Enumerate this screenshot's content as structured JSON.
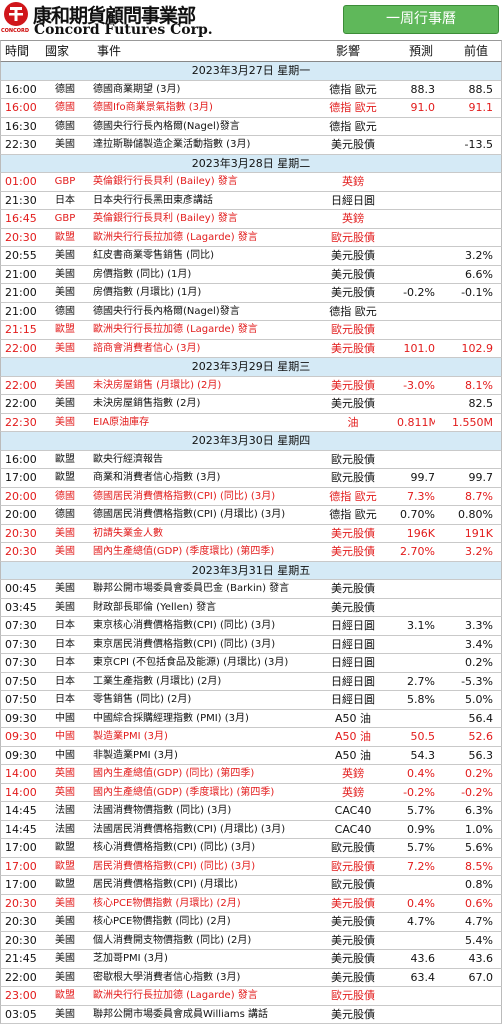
{
  "header": {
    "logo_text": "CONCORD",
    "company": "康和期貨顧問事業部",
    "company_en": "Concord Futures Corp.",
    "button": "一周行事曆"
  },
  "columns": [
    "時間",
    "國家",
    "事件",
    "影響",
    "預測",
    "前值"
  ],
  "days": [
    {
      "date": "2023年3月27日  星期一",
      "events": [
        {
          "time": "16:00",
          "country": "德國",
          "event": "德國商業期望 (3月)",
          "impact": "德指 歐元",
          "forecast": "88.3",
          "previous": "88.5"
        },
        {
          "time": "16:00",
          "country": "德國",
          "event": "德國Ifo商業景氣指數 (3月)",
          "impact": "德指 歐元",
          "forecast": "91.0",
          "previous": "91.1",
          "red": true
        },
        {
          "time": "16:30",
          "country": "德國",
          "event": "德國央行行長內格爾(Nagel)發言",
          "impact": "德指 歐元"
        },
        {
          "time": "22:30",
          "country": "美國",
          "event": "達拉斯聯儲製造企業活動指數 (3月)",
          "impact": "美元股債",
          "previous": "-13.5"
        }
      ]
    },
    {
      "date": "2023年3月28日  星期二",
      "events": [
        {
          "time": "01:00",
          "country": "GBP",
          "event": "英倫銀行行長貝利 (Bailey) 發言",
          "impact": "英鎊",
          "red": true
        },
        {
          "time": "21:30",
          "country": "日本",
          "event": "日本央行行長黑田東彥講話",
          "impact": "日經日圓"
        },
        {
          "time": "16:45",
          "country": "GBP",
          "event": "英倫銀行行長貝利 (Bailey) 發言",
          "impact": "英鎊",
          "red": true
        },
        {
          "time": "20:30",
          "country": "歐盟",
          "event": "歐洲央行行長拉加德 (Lagarde) 發言",
          "impact": "歐元股債",
          "red": true
        },
        {
          "time": "20:55",
          "country": "美國",
          "event": "紅皮書商業零售銷售 (同比)",
          "impact": "美元股債",
          "previous": "3.2%"
        },
        {
          "time": "21:00",
          "country": "美國",
          "event": "房價指數 (同比) (1月)",
          "impact": "美元股債",
          "previous": "6.6%"
        },
        {
          "time": "21:00",
          "country": "美國",
          "event": "房價指數 (月環比) (1月)",
          "impact": "美元股債",
          "forecast": "-0.2%",
          "previous": "-0.1%"
        },
        {
          "time": "21:00",
          "country": "德國",
          "event": "德國央行行長內格爾(Nagel)發言",
          "impact": "德指 歐元"
        },
        {
          "time": "21:15",
          "country": "歐盟",
          "event": "歐洲央行行長拉加德 (Lagarde) 發言",
          "impact": "歐元股債",
          "red": true
        },
        {
          "time": "22:00",
          "country": "美國",
          "event": "諮商會消費者信心 (3月)",
          "impact": "美元股債",
          "forecast": "101.0",
          "previous": "102.9",
          "red": true
        }
      ]
    },
    {
      "date": "2023年3月29日  星期三",
      "events": [
        {
          "time": "22:00",
          "country": "美國",
          "event": "未決房屋銷售 (月環比) (2月)",
          "impact": "美元股債",
          "forecast": "-3.0%",
          "previous": "8.1%",
          "red": true
        },
        {
          "time": "22:00",
          "country": "美國",
          "event": "未決房屋銷售指數 (2月)",
          "impact": "美元股債",
          "previous": "82.5"
        },
        {
          "time": "22:30",
          "country": "美國",
          "event": "EIA原油庫存",
          "impact": "油",
          "forecast": "0.811M",
          "previous": "1.550M",
          "red": true
        }
      ]
    },
    {
      "date": "2023年3月30日  星期四",
      "events": [
        {
          "time": "16:00",
          "country": "歐盟",
          "event": "歐央行經濟報告",
          "impact": "歐元股債"
        },
        {
          "time": "17:00",
          "country": "歐盟",
          "event": "商業和消費者信心指數 (3月)",
          "impact": "歐元股債",
          "forecast": "99.7",
          "previous": "99.7"
        },
        {
          "time": "20:00",
          "country": "德國",
          "event": "德國居民消費價格指數(CPI) (同比) (3月)",
          "impact": "德指 歐元",
          "forecast": "7.3%",
          "previous": "8.7%",
          "red": true
        },
        {
          "time": "20:00",
          "country": "德國",
          "event": "德國居民消費價格指數(CPI) (月環比) (3月)",
          "impact": "德指 歐元",
          "forecast": "0.70%",
          "previous": "0.80%"
        },
        {
          "time": "20:30",
          "country": "美國",
          "event": "初請失業金人數",
          "impact": "美元股債",
          "forecast": "196K",
          "previous": "191K",
          "red": true
        },
        {
          "time": "20:30",
          "country": "美國",
          "event": "國內生產總值(GDP) (季度環比) (第四季)",
          "impact": "美元股債",
          "forecast": "2.70%",
          "previous": "3.2%",
          "red": true
        }
      ]
    },
    {
      "date": "2023年3月31日  星期五",
      "events": [
        {
          "time": "00:45",
          "country": "美國",
          "event": "聯邦公開市場委員會委員巴金 (Barkin) 發言",
          "impact": "美元股債"
        },
        {
          "time": "03:45",
          "country": "美國",
          "event": "財政部長耶倫 (Yellen) 發言",
          "impact": "美元股債"
        },
        {
          "time": "07:30",
          "country": "日本",
          "event": "東京核心消費價格指數(CPI) (同比) (3月)",
          "impact": "日經日圓",
          "forecast": "3.1%",
          "previous": "3.3%"
        },
        {
          "time": "07:30",
          "country": "日本",
          "event": "東京居民消費價格指數(CPI) (同比) (3月)",
          "impact": "日經日圓",
          "previous": "3.4%"
        },
        {
          "time": "07:30",
          "country": "日本",
          "event": "東京CPI (不包括食品及能源) (月環比) (3月)",
          "impact": "日經日圓",
          "previous": "0.2%"
        },
        {
          "time": "07:50",
          "country": "日本",
          "event": "工業生產指數 (月環比) (2月)",
          "impact": "日經日圓",
          "forecast": "2.7%",
          "previous": "-5.3%"
        },
        {
          "time": "07:50",
          "country": "日本",
          "event": "零售銷售 (同比) (2月)",
          "impact": "日經日圓",
          "forecast": "5.8%",
          "previous": "5.0%"
        },
        {
          "time": "09:30",
          "country": "中國",
          "event": "中國綜合採購經理指數 (PMI) (3月)",
          "impact": "A50 油",
          "previous": "56.4"
        },
        {
          "time": "09:30",
          "country": "中國",
          "event": "製造業PMI (3月)",
          "impact": "A50 油",
          "forecast": "50.5",
          "previous": "52.6",
          "red": true
        },
        {
          "time": "09:30",
          "country": "中國",
          "event": "非製造業PMI (3月)",
          "impact": "A50 油",
          "forecast": "54.3",
          "previous": "56.3"
        },
        {
          "time": "14:00",
          "country": "英國",
          "event": "國內生產總值(GDP) (同比) (第四季)",
          "impact": "英鎊",
          "forecast": "0.4%",
          "previous": "0.2%",
          "red": true
        },
        {
          "time": "14:00",
          "country": "英國",
          "event": "國內生產總值(GDP) (季度環比) (第四季)",
          "impact": "英鎊",
          "forecast": "-0.2%",
          "previous": "-0.2%",
          "red": true
        },
        {
          "time": "14:45",
          "country": "法國",
          "event": "法國消費物價指數 (同比) (3月)",
          "impact": "CAC40",
          "forecast": "5.7%",
          "previous": "6.3%"
        },
        {
          "time": "14:45",
          "country": "法國",
          "event": "法國居民消費價格指數(CPI) (月環比) (3月)",
          "impact": "CAC40",
          "forecast": "0.9%",
          "previous": "1.0%"
        },
        {
          "time": "17:00",
          "country": "歐盟",
          "event": "核心消費價格指數(CPI) (同比) (3月)",
          "impact": "歐元股債",
          "forecast": "5.7%",
          "previous": "5.6%"
        },
        {
          "time": "17:00",
          "country": "歐盟",
          "event": "居民消費價格指數(CPI) (同比) (3月)",
          "impact": "歐元股債",
          "forecast": "7.2%",
          "previous": "8.5%",
          "red": true
        },
        {
          "time": "17:00",
          "country": "歐盟",
          "event": "居民消費價格指數(CPI) (月環比)",
          "impact": "歐元股債",
          "previous": "0.8%"
        },
        {
          "time": "20:30",
          "country": "美國",
          "event": "核心PCE物價指數 (月環比) (2月)",
          "impact": "美元股債",
          "forecast": "0.4%",
          "previous": "0.6%",
          "red": true
        },
        {
          "time": "20:30",
          "country": "美國",
          "event": "核心PCE物價指數 (同比) (2月)",
          "impact": "美元股債",
          "forecast": "4.7%",
          "previous": "4.7%"
        },
        {
          "time": "20:30",
          "country": "美國",
          "event": "個人消費開支物價指數 (同比) (2月)",
          "impact": "美元股債",
          "previous": "5.4%"
        },
        {
          "time": "21:45",
          "country": "美國",
          "event": "芝加哥PMI (3月)",
          "impact": "美元股債",
          "forecast": "43.6",
          "previous": "43.6"
        },
        {
          "time": "22:00",
          "country": "美國",
          "event": "密歇根大學消費者信心指數 (3月)",
          "impact": "美元股債",
          "forecast": "63.4",
          "previous": "67.0"
        },
        {
          "time": "23:00",
          "country": "歐盟",
          "event": "歐洲央行行長拉加德 (Lagarde) 發言",
          "impact": "歐元股債",
          "red": true
        },
        {
          "time": "03:05",
          "country": "美國",
          "event": "聯邦公開市場委員會成員Williams 講話",
          "impact": "美元股債"
        }
      ]
    }
  ]
}
